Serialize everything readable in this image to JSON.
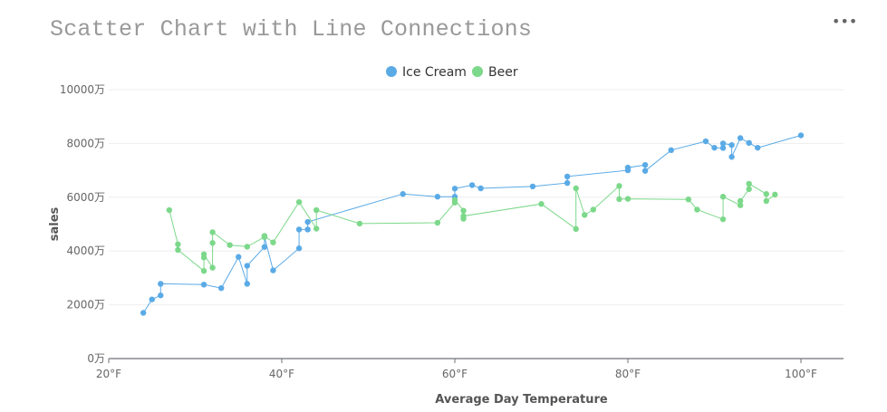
{
  "header": {
    "title": "Scatter Chart with Line Connections",
    "menu_glyph": "•••"
  },
  "chart_data": {
    "type": "scatter",
    "connect_points_with_lines": true,
    "title": "Scatter Chart with Line Connections",
    "xlabel": "Average Day Temperature",
    "ylabel": "sales",
    "xlim": [
      20,
      105
    ],
    "ylim": [
      0,
      10000
    ],
    "x_ticks": [
      20,
      40,
      60,
      80,
      100
    ],
    "x_tick_labels": [
      "20°F",
      "40°F",
      "60°F",
      "80°F",
      "100°F"
    ],
    "y_ticks": [
      0,
      2000,
      4000,
      6000,
      8000,
      10000
    ],
    "y_tick_labels": [
      "0万",
      "2000万",
      "4000万",
      "6000万",
      "8000万",
      "10000万"
    ],
    "grid": true,
    "legend_placement": "top-center",
    "series": [
      {
        "name": "Ice Cream",
        "color": "#5aaae6",
        "points": [
          [
            24,
            1700
          ],
          [
            25,
            2200
          ],
          [
            26,
            2350
          ],
          [
            26,
            2780
          ],
          [
            31,
            2750
          ],
          [
            33,
            2620
          ],
          [
            35,
            3780
          ],
          [
            36,
            2780
          ],
          [
            36,
            3450
          ],
          [
            38,
            4150
          ],
          [
            38,
            4520
          ],
          [
            39,
            3280
          ],
          [
            42,
            4100
          ],
          [
            42,
            4800
          ],
          [
            43,
            4800
          ],
          [
            43,
            5080
          ],
          [
            54,
            6120
          ],
          [
            58,
            6020
          ],
          [
            60,
            6020
          ],
          [
            60,
            6320
          ],
          [
            62,
            6450
          ],
          [
            63,
            6330
          ],
          [
            69,
            6400
          ],
          [
            73,
            6530
          ],
          [
            73,
            6770
          ],
          [
            80,
            7000
          ],
          [
            80,
            7100
          ],
          [
            82,
            7200
          ],
          [
            82,
            6980
          ],
          [
            85,
            7750
          ],
          [
            89,
            8080
          ],
          [
            90,
            7840
          ],
          [
            91,
            7830
          ],
          [
            91,
            8000
          ],
          [
            92,
            7940
          ],
          [
            92,
            7500
          ],
          [
            93,
            8200
          ],
          [
            94,
            8020
          ],
          [
            95,
            7840
          ],
          [
            100,
            8300
          ]
        ]
      },
      {
        "name": "Beer",
        "color": "#7cd88a",
        "points": [
          [
            27,
            5520
          ],
          [
            28,
            4250
          ],
          [
            28,
            4040
          ],
          [
            31,
            3260
          ],
          [
            31,
            3760
          ],
          [
            31,
            3880
          ],
          [
            32,
            3380
          ],
          [
            32,
            4300
          ],
          [
            32,
            4700
          ],
          [
            34,
            4220
          ],
          [
            36,
            4160
          ],
          [
            38,
            4520
          ],
          [
            38,
            4560
          ],
          [
            39,
            4320
          ],
          [
            42,
            5820
          ],
          [
            44,
            4830
          ],
          [
            44,
            5520
          ],
          [
            49,
            5020
          ],
          [
            58,
            5050
          ],
          [
            60,
            5800
          ],
          [
            60,
            5900
          ],
          [
            61,
            5500
          ],
          [
            61,
            5200
          ],
          [
            61,
            5300
          ],
          [
            70,
            5750
          ],
          [
            74,
            4820
          ],
          [
            74,
            6330
          ],
          [
            75,
            5340
          ],
          [
            76,
            5540
          ],
          [
            79,
            6420
          ],
          [
            79,
            5930
          ],
          [
            80,
            5940
          ],
          [
            87,
            5920
          ],
          [
            88,
            5540
          ],
          [
            91,
            5180
          ],
          [
            91,
            6020
          ],
          [
            93,
            5700
          ],
          [
            93,
            5860
          ],
          [
            94,
            6300
          ],
          [
            94,
            6500
          ],
          [
            96,
            6120
          ],
          [
            96,
            5860
          ],
          [
            97,
            6100
          ]
        ]
      }
    ]
  }
}
